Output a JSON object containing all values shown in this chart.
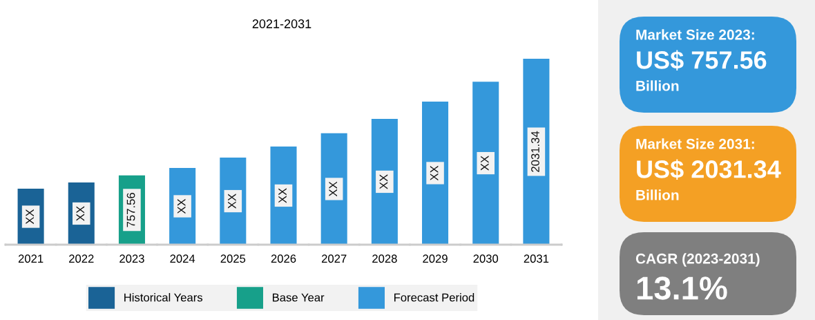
{
  "chart_data": [
    {
      "type": "bar",
      "title": "2021-2031",
      "categories": [
        "2021",
        "2022",
        "2023",
        "2024",
        "2025",
        "2026",
        "2027",
        "2028",
        "2029",
        "2030",
        "2031"
      ],
      "series": [
        {
          "name": "Historical Years",
          "color": "#1a6396",
          "values": [
            611,
            680,
            null,
            null,
            null,
            null,
            null,
            null,
            null,
            null,
            null
          ],
          "value_labels": [
            "XX",
            "XX",
            null,
            null,
            null,
            null,
            null,
            null,
            null,
            null,
            null
          ]
        },
        {
          "name": "Base Year",
          "color": "#17a08a",
          "values": [
            null,
            null,
            757.56,
            null,
            null,
            null,
            null,
            null,
            null,
            null,
            null
          ],
          "value_labels": [
            null,
            null,
            "757.56",
            null,
            null,
            null,
            null,
            null,
            null,
            null,
            null
          ]
        },
        {
          "name": "Forecast Period",
          "color": "#3498db",
          "values": [
            null,
            null,
            null,
            839,
            951,
            1073,
            1217,
            1375,
            1564,
            1781,
            2031.34
          ],
          "value_labels": [
            null,
            null,
            null,
            "XX",
            "XX",
            "XX",
            "XX",
            "XX",
            "XX",
            "XX",
            "2031.34"
          ]
        }
      ],
      "legend": "bottom",
      "grid": false
    },
    {
      "type": "other",
      "colors": [
        "#3498db"
      ],
      "annotations": [
        "Market Size 2023:",
        "US$ 757.56",
        "Billion"
      ]
    },
    {
      "type": "other",
      "colors": [
        "#f4a024"
      ],
      "annotations": [
        "Market Size 2031:",
        "US$ 2031.34",
        "Billion"
      ]
    },
    {
      "type": "other",
      "colors": [
        "#7f7f7f"
      ],
      "annotations": [
        "CAGR (2023-2031)",
        "13.1%"
      ]
    }
  ]
}
